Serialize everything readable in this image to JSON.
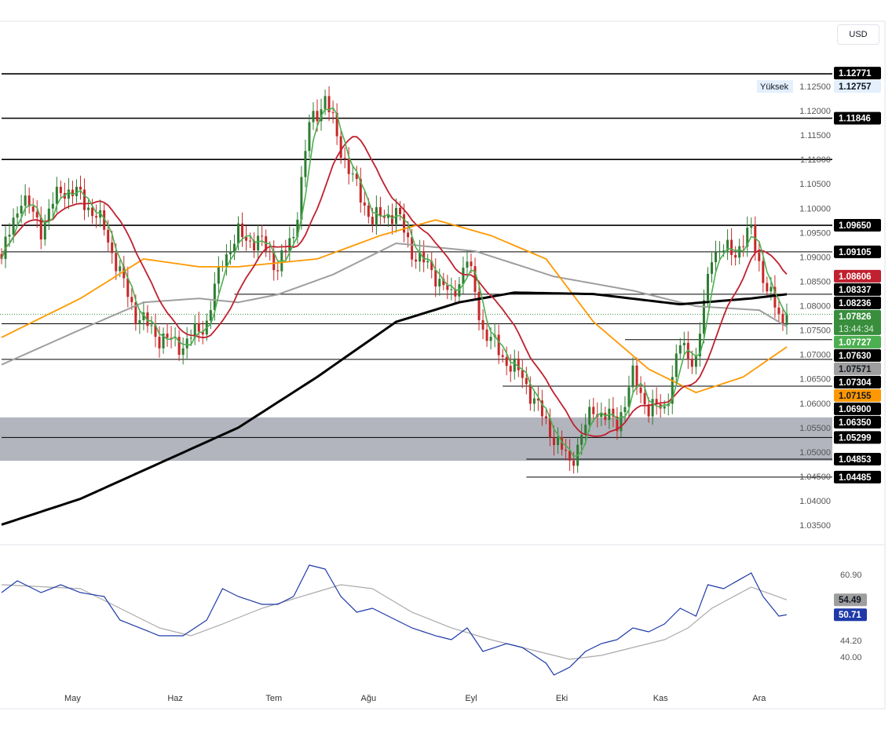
{
  "currency_button": "USD",
  "colors": {
    "up": "#2e7d32",
    "down": "#c62828",
    "ma_fast": "#4caf50",
    "ma_mid": "#c0202f",
    "ma_50": "#ff9800",
    "ma_100": "#9e9e9e",
    "ma_200": "#000000",
    "rsi": "#1e3aa8",
    "rsi_ma": "#aaaaaa",
    "zone": "#b2b5be"
  },
  "chart_data": {
    "type": "line",
    "title": "",
    "instrument_note": "candlestick price chart with moving averages and RSI",
    "ylim": [
      1.031,
      1.134
    ],
    "bars": 200,
    "price_ticks": [
      "1.12500",
      "1.12000",
      "1.11500",
      "1.11000",
      "1.10500",
      "1.10000",
      "1.09500",
      "1.09000",
      "1.08500",
      "1.08000",
      "1.07500",
      "1.07000",
      "1.06500",
      "1.06000",
      "1.05500",
      "1.05000",
      "1.04500",
      "1.04000",
      "1.03500"
    ],
    "month_ticks": [
      {
        "label": "May",
        "bar": 18
      },
      {
        "label": "Haz",
        "bar": 44
      },
      {
        "label": "Tem",
        "bar": 69
      },
      {
        "label": "Ağu",
        "bar": 93
      },
      {
        "label": "Eyl",
        "bar": 119
      },
      {
        "label": "Eki",
        "bar": 142
      },
      {
        "label": "Kas",
        "bar": 167
      },
      {
        "label": "Ara",
        "bar": 192
      }
    ],
    "close_keypoints": [
      [
        0,
        1.0896
      ],
      [
        5,
        1.1025
      ],
      [
        10,
        1.096
      ],
      [
        15,
        1.104
      ],
      [
        20,
        1.1025
      ],
      [
        26,
        1.096
      ],
      [
        30,
        1.0864
      ],
      [
        34,
        1.0783
      ],
      [
        40,
        1.0735
      ],
      [
        46,
        1.0719
      ],
      [
        52,
        1.0767
      ],
      [
        56,
        1.0896
      ],
      [
        60,
        1.0944
      ],
      [
        66,
        1.0928
      ],
      [
        70,
        1.088
      ],
      [
        74,
        1.0944
      ],
      [
        78,
        1.117
      ],
      [
        82,
        1.1226
      ],
      [
        86,
        1.1121
      ],
      [
        90,
        1.104
      ],
      [
        94,
        1.0976
      ],
      [
        100,
        1.0992
      ],
      [
        104,
        1.0912
      ],
      [
        110,
        1.0864
      ],
      [
        114,
        1.0815
      ],
      [
        118,
        1.0896
      ],
      [
        122,
        1.0751
      ],
      [
        128,
        1.0686
      ],
      [
        132,
        1.0654
      ],
      [
        138,
        1.0558
      ],
      [
        144,
        1.0477
      ],
      [
        150,
        1.059
      ],
      [
        156,
        1.0558
      ],
      [
        160,
        1.0654
      ],
      [
        164,
        1.059
      ],
      [
        168,
        1.059
      ],
      [
        172,
        1.0719
      ],
      [
        176,
        1.0686
      ],
      [
        180,
        1.0912
      ],
      [
        186,
        1.0912
      ],
      [
        190,
        1.0952
      ],
      [
        194,
        1.0831
      ],
      [
        198,
        1.0767
      ],
      [
        199,
        1.07826
      ]
    ],
    "ma_50_keypoints": [
      [
        0,
        1.0735
      ],
      [
        20,
        1.0815
      ],
      [
        36,
        1.0896
      ],
      [
        50,
        1.088
      ],
      [
        60,
        1.088
      ],
      [
        80,
        1.0896
      ],
      [
        96,
        1.0944
      ],
      [
        110,
        1.0976
      ],
      [
        124,
        1.0944
      ],
      [
        138,
        1.0896
      ],
      [
        150,
        1.0767
      ],
      [
        164,
        1.067
      ],
      [
        176,
        1.0622
      ],
      [
        188,
        1.0654
      ],
      [
        199,
        1.07155
      ]
    ],
    "ma_100_keypoints": [
      [
        0,
        1.0679
      ],
      [
        20,
        1.0751
      ],
      [
        36,
        1.0807
      ],
      [
        50,
        1.0815
      ],
      [
        60,
        1.0807
      ],
      [
        70,
        1.0823
      ],
      [
        84,
        1.0864
      ],
      [
        100,
        1.0928
      ],
      [
        120,
        1.0912
      ],
      [
        140,
        1.086
      ],
      [
        160,
        1.0831
      ],
      [
        176,
        1.0799
      ],
      [
        192,
        1.0791
      ],
      [
        199,
        1.07571
      ]
    ],
    "ma_200_keypoints": [
      [
        0,
        1.0351
      ],
      [
        20,
        1.0404
      ],
      [
        40,
        1.0477
      ],
      [
        60,
        1.055
      ],
      [
        80,
        1.0654
      ],
      [
        100,
        1.0767
      ],
      [
        116,
        1.0807
      ],
      [
        130,
        1.0827
      ],
      [
        150,
        1.0824
      ],
      [
        172,
        1.0803
      ],
      [
        190,
        1.0815
      ],
      [
        199,
        1.08236
      ]
    ],
    "horizontal_levels": [
      {
        "price": 1.12757,
        "from_bar": 0
      },
      {
        "price": 1.11846,
        "from_bar": 0
      },
      {
        "price": 1.11,
        "from_bar": 0
      },
      {
        "price": 1.0965,
        "from_bar": 0
      },
      {
        "price": 1.09105,
        "from_bar": 0
      },
      {
        "price": 1.08236,
        "from_bar": 59
      },
      {
        "price": 1.0763,
        "from_bar": 0
      },
      {
        "price": 1.07304,
        "from_bar": 158
      },
      {
        "price": 1.069,
        "from_bar": 0
      },
      {
        "price": 1.0635,
        "from_bar": 127
      },
      {
        "price": 1.05299,
        "from_bar": 0
      },
      {
        "price": 1.04853,
        "from_bar": 133
      },
      {
        "price": 1.04485,
        "from_bar": 133
      }
    ],
    "zone": [
      1.0482,
      1.0571
    ],
    "current_price": 1.07826,
    "price_labels": [
      {
        "text": "1.12771",
        "price": 1.12771,
        "bg": "#000000",
        "fg": "#ffffff"
      },
      {
        "text": "1.12757",
        "price": 1.12757,
        "bg": "#e3effd",
        "fg": "#131722",
        "tag": "Yüksek"
      },
      {
        "text": "1.11846",
        "price": 1.11846,
        "bg": "#000000",
        "fg": "#ffffff"
      },
      {
        "text": "1.09650",
        "price": 1.0965,
        "bg": "#000000",
        "fg": "#ffffff"
      },
      {
        "text": "1.09105",
        "price": 1.09105,
        "bg": "#000000",
        "fg": "#ffffff"
      },
      {
        "text": "1.08606",
        "price": 1.08606,
        "bg": "#c0202f",
        "fg": "#ffffff"
      },
      {
        "text": "1.08337",
        "price": 1.08337,
        "bg": "#000000",
        "fg": "#ffffff"
      },
      {
        "text": "1.08236",
        "price": 1.08236,
        "bg": "#000000",
        "fg": "#ffffff"
      },
      {
        "text": "1.07826",
        "price": 1.07826,
        "bg": "#388e3c",
        "fg": "#ffffff",
        "sub": "13:44:34"
      },
      {
        "text": "1.07727",
        "price": 1.07727,
        "bg": "#4caf50",
        "fg": "#ffffff"
      },
      {
        "text": "1.07630",
        "price": 1.0763,
        "bg": "#000000",
        "fg": "#ffffff"
      },
      {
        "text": "1.07571",
        "price": 1.07571,
        "bg": "#9e9e9e",
        "fg": "#131722"
      },
      {
        "text": "1.07304",
        "price": 1.07304,
        "bg": "#000000",
        "fg": "#ffffff"
      },
      {
        "text": "1.07155",
        "price": 1.07155,
        "bg": "#ff9800",
        "fg": "#131722"
      },
      {
        "text": "1.06900",
        "price": 1.069,
        "bg": "#000000",
        "fg": "#ffffff"
      },
      {
        "text": "1.06350",
        "price": 1.0635,
        "bg": "#000000",
        "fg": "#ffffff"
      },
      {
        "text": "1.05299",
        "price": 1.05299,
        "bg": "#000000",
        "fg": "#ffffff"
      },
      {
        "text": "1.04853",
        "price": 1.04853,
        "bg": "#000000",
        "fg": "#ffffff"
      },
      {
        "text": "1.04485",
        "price": 1.04485,
        "bg": "#000000",
        "fg": "#ffffff"
      }
    ],
    "rsi": {
      "ticks": [
        "60.90",
        "44.20",
        "40.00"
      ],
      "tick_values": [
        60.9,
        44.2,
        40.0
      ],
      "labels": [
        {
          "text": "54.49",
          "value": 54.49,
          "bg": "#9e9e9e",
          "fg": "#131722"
        },
        {
          "text": "50.71",
          "value": 50.71,
          "bg": "#1e3aa8",
          "fg": "#ffffff"
        }
      ],
      "keypoints": [
        [
          0,
          56.32
        ],
        [
          4,
          59.31
        ],
        [
          10,
          56.32
        ],
        [
          15,
          58.31
        ],
        [
          20,
          56.32
        ],
        [
          26,
          55.33
        ],
        [
          30,
          49.36
        ],
        [
          35,
          47.37
        ],
        [
          40,
          45.37
        ],
        [
          46,
          45.37
        ],
        [
          52,
          49.36
        ],
        [
          56,
          57.32
        ],
        [
          60,
          55.33
        ],
        [
          66,
          53.34
        ],
        [
          70,
          53.34
        ],
        [
          74,
          55.33
        ],
        [
          78,
          63.29
        ],
        [
          82,
          62.29
        ],
        [
          86,
          55.33
        ],
        [
          90,
          51.35
        ],
        [
          94,
          52.34
        ],
        [
          100,
          49.36
        ],
        [
          104,
          47.37
        ],
        [
          110,
          45.37
        ],
        [
          114,
          44.38
        ],
        [
          118,
          47.37
        ],
        [
          122,
          41.39
        ],
        [
          128,
          43.38
        ],
        [
          132,
          42.39
        ],
        [
          138,
          38.41
        ],
        [
          140,
          35.42
        ],
        [
          144,
          37.4
        ],
        [
          148,
          41.39
        ],
        [
          152,
          43.38
        ],
        [
          156,
          44.38
        ],
        [
          160,
          47.37
        ],
        [
          164,
          46.37
        ],
        [
          168,
          48.36
        ],
        [
          172,
          52.34
        ],
        [
          176,
          50.35
        ],
        [
          179,
          58.31
        ],
        [
          183,
          57.32
        ],
        [
          190,
          61.3
        ],
        [
          193,
          55.33
        ],
        [
          197,
          50.35
        ],
        [
          199,
          50.71
        ]
      ],
      "ma_keypoints": [
        [
          0,
          58.31
        ],
        [
          20,
          57.32
        ],
        [
          30,
          52.34
        ],
        [
          40,
          47.37
        ],
        [
          48,
          45.37
        ],
        [
          56,
          48.36
        ],
        [
          66,
          52.34
        ],
        [
          76,
          55.33
        ],
        [
          86,
          58.31
        ],
        [
          94,
          57.32
        ],
        [
          104,
          51.35
        ],
        [
          114,
          47.37
        ],
        [
          124,
          44.38
        ],
        [
          136,
          41.39
        ],
        [
          144,
          39.4
        ],
        [
          152,
          40.4
        ],
        [
          160,
          42.39
        ],
        [
          168,
          44.38
        ],
        [
          174,
          47.37
        ],
        [
          180,
          52.34
        ],
        [
          190,
          57.72
        ],
        [
          199,
          54.49
        ]
      ]
    }
  }
}
